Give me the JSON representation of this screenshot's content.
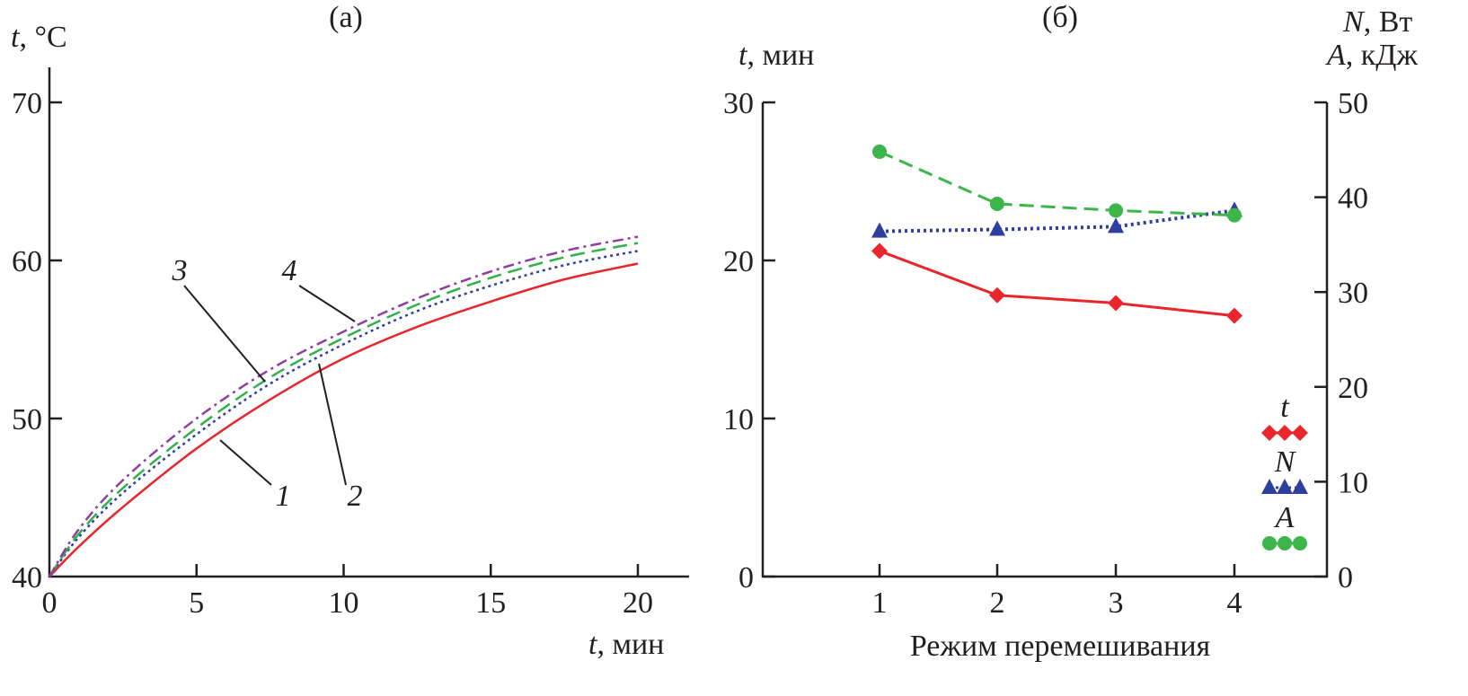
{
  "chart_data": [
    {
      "type": "line",
      "title": "(а)",
      "xlabel": "t, мин",
      "xlabel_var": "t",
      "xlabel_unit": ", мин",
      "ylabel_var": "t",
      "ylabel_unit": ", °C",
      "xlim": [
        0,
        21.8
      ],
      "ylim": [
        40,
        72
      ],
      "xticks": [
        0,
        5,
        10,
        15,
        20
      ],
      "yticks": [
        40,
        50,
        60,
        70
      ],
      "grid": false,
      "x": [
        0,
        1,
        2.5,
        5,
        7.5,
        10,
        12.5,
        15,
        17.5,
        20
      ],
      "series": [
        {
          "name": "1",
          "color": "#e8262c",
          "dash": "solid",
          "values": [
            40,
            41.9,
            44.4,
            48.1,
            51.2,
            53.8,
            55.8,
            57.4,
            58.8,
            59.8
          ]
        },
        {
          "name": "2",
          "color": "#2e3f9e",
          "dash": "dotted",
          "values": [
            40,
            42.5,
            45.3,
            49.0,
            52.2,
            54.7,
            56.8,
            58.4,
            59.7,
            60.6
          ]
        },
        {
          "name": "3",
          "color": "#2db34a",
          "dash": "dashed",
          "values": [
            40,
            42.7,
            45.6,
            49.4,
            52.6,
            55.1,
            57.2,
            58.9,
            60.2,
            61.1
          ]
        },
        {
          "name": "4",
          "color": "#8e3fa0",
          "dash": "dashdot",
          "values": [
            40,
            43.0,
            46.1,
            50.0,
            53.1,
            55.5,
            57.6,
            59.3,
            60.6,
            61.5
          ]
        }
      ],
      "annotations": [
        "1",
        "2",
        "3",
        "4"
      ]
    },
    {
      "type": "line",
      "title": "(б)",
      "xlabel": "Режим перемешивания",
      "ylabel_left_var": "t",
      "ylabel_left_unit": ", мин",
      "ylabel_right_1_var": "N",
      "ylabel_right_1_unit": ", Вт",
      "ylabel_right_2_var": "A",
      "ylabel_right_2_unit": ", кДж",
      "categories": [
        "1",
        "2",
        "3",
        "4"
      ],
      "ylim_left": [
        0,
        30
      ],
      "ylim_right": [
        0,
        50
      ],
      "yticks_left": [
        0,
        10,
        20,
        30
      ],
      "yticks_right": [
        0,
        10,
        20,
        30,
        40,
        50
      ],
      "grid": false,
      "legend_position": "bottom-right",
      "series": [
        {
          "name": "t",
          "axis": "left",
          "color": "#e8262c",
          "marker": "diamond",
          "dash": "solid",
          "values": [
            20.6,
            17.8,
            17.3,
            16.5
          ]
        },
        {
          "name": "N",
          "axis": "right",
          "color": "#2e3f9e",
          "marker": "triangle",
          "dash": "dotted",
          "values": [
            36.4,
            36.6,
            36.9,
            38.6
          ]
        },
        {
          "name": "A",
          "axis": "right",
          "color": "#3cb54a",
          "marker": "circle",
          "dash": "dashed",
          "values": [
            44.8,
            39.3,
            38.6,
            38.1
          ]
        }
      ]
    }
  ]
}
